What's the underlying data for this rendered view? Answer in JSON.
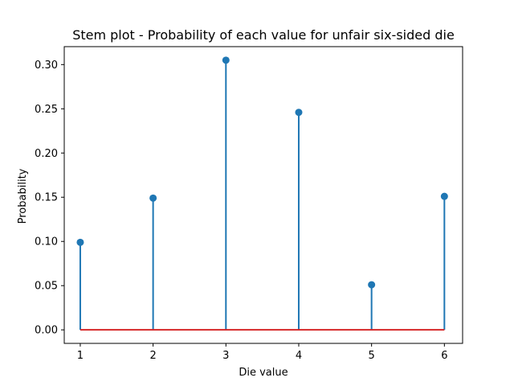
{
  "chart_data": {
    "type": "stem",
    "title": "Stem plot - Probability of each value for unfair six-sided die",
    "xlabel": "Die value",
    "ylabel": "Probability",
    "x": [
      1,
      2,
      3,
      4,
      5,
      6
    ],
    "values": [
      0.099,
      0.149,
      0.305,
      0.246,
      0.051,
      0.151
    ],
    "xlim": [
      0.78,
      6.25
    ],
    "ylim": [
      -0.0153,
      0.3203
    ],
    "xticks": [
      "1",
      "2",
      "3",
      "4",
      "5",
      "6"
    ],
    "yticks": [
      "0.00",
      "0.05",
      "0.10",
      "0.15",
      "0.20",
      "0.25",
      "0.30"
    ],
    "baseline": 0,
    "grid": false,
    "colors": {
      "stem": "#1f77b4",
      "marker": "#1f77b4",
      "baseline": "#d62728"
    }
  }
}
